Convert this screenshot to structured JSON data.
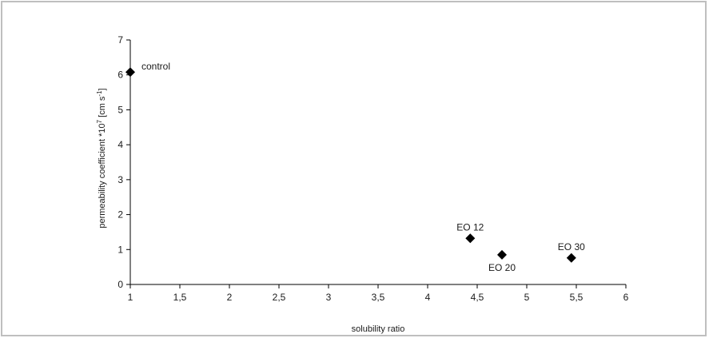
{
  "chart_data": {
    "type": "scatter",
    "xlabel": "solubility ratio",
    "ylabel": "permeability coefficient *10",
    "ylabel_sup": "7",
    "ylabel_unit_open": " [cm s",
    "ylabel_unit_sup": "-1",
    "ylabel_unit_close": "]",
    "xlim": [
      1,
      6
    ],
    "ylim": [
      0,
      7
    ],
    "x_ticks": [
      1,
      1.5,
      2,
      2.5,
      3,
      3.5,
      4,
      4.5,
      5,
      5.5,
      6
    ],
    "x_tick_labels": [
      "1",
      "1,5",
      "2",
      "2,5",
      "3",
      "3,5",
      "4",
      "4,5",
      "5",
      "5,5",
      "6"
    ],
    "y_ticks": [
      0,
      1,
      2,
      3,
      4,
      5,
      6,
      7
    ],
    "y_tick_labels": [
      "0",
      "1",
      "2",
      "3",
      "4",
      "5",
      "6",
      "7"
    ],
    "grid": false,
    "marker_color": "#000000",
    "points": [
      {
        "label": "control",
        "x": 1.0,
        "y": 6.08,
        "label_pos": "right"
      },
      {
        "label": "EO 12",
        "x": 4.43,
        "y": 1.32,
        "label_pos": "above"
      },
      {
        "label": "EO 20",
        "x": 4.75,
        "y": 0.85,
        "label_pos": "below"
      },
      {
        "label": "EO 30",
        "x": 5.45,
        "y": 0.76,
        "label_pos": "above"
      }
    ]
  }
}
